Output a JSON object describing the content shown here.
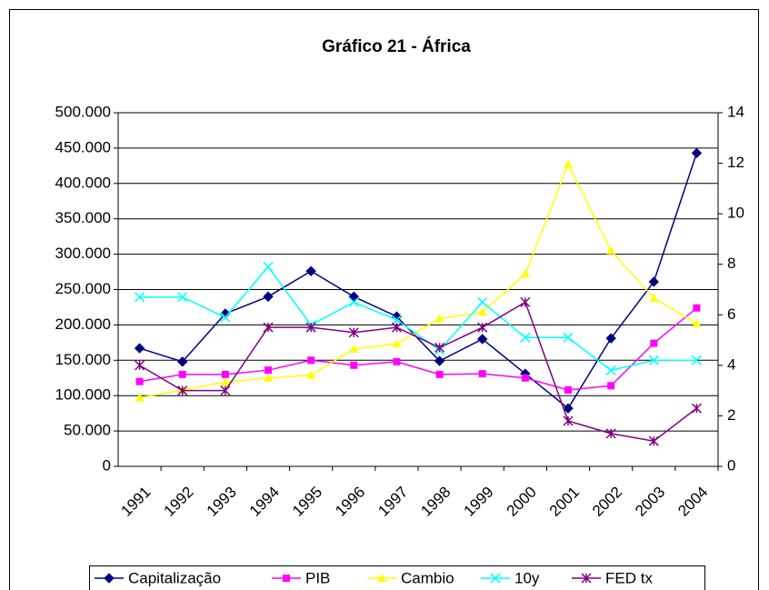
{
  "chart_data": {
    "type": "line",
    "title": "Gráfico 21 - África",
    "categories": [
      "1991",
      "1992",
      "1993",
      "1994",
      "1995",
      "1996",
      "1997",
      "1998",
      "1999",
      "2000",
      "2001",
      "2002",
      "2003",
      "2004"
    ],
    "series": [
      {
        "name": "Capitalização",
        "color": "#000080",
        "marker": "diamond",
        "values": [
          167000,
          148000,
          216000,
          240000,
          276000,
          240000,
          212000,
          149000,
          180000,
          131000,
          82000,
          181000,
          261000,
          443000
        ]
      },
      {
        "name": "PIB",
        "color": "#ff00ff",
        "marker": "square",
        "values": [
          120000,
          130000,
          130000,
          136000,
          150000,
          143000,
          148000,
          130000,
          131000,
          125000,
          108000,
          114000,
          174000,
          224000
        ]
      },
      {
        "name": "Cambio",
        "color": "#ffff00",
        "marker": "triangle",
        "values": [
          97000,
          108000,
          119000,
          125000,
          129000,
          166000,
          173000,
          209000,
          218000,
          272000,
          427000,
          305000,
          238000,
          202000
        ]
      },
      {
        "name": "10y",
        "color": "#00ffff",
        "marker": "x",
        "axis": "y2",
        "values": [
          6.7,
          6.7,
          5.9,
          7.9,
          5.6,
          6.5,
          5.8,
          4.6,
          6.5,
          5.1,
          5.1,
          3.8,
          4.2,
          4.2
        ]
      },
      {
        "name": "FED tx",
        "color": "#800080",
        "marker": "star",
        "axis": "y2",
        "values": [
          4.0,
          3.0,
          3.0,
          5.5,
          5.5,
          5.3,
          5.5,
          4.7,
          5.5,
          6.5,
          1.8,
          1.3,
          1.0,
          2.3
        ]
      }
    ],
    "ylim": [
      0,
      500000
    ],
    "yticks": [
      0,
      {
        "value": 50000,
        "label": "50.000"
      },
      {
        "value": 100000,
        "label": "100.000"
      },
      {
        "value": 150000,
        "label": "150.000"
      },
      {
        "value": 200000,
        "label": "200.000"
      },
      {
        "value": 250000,
        "label": "250.000"
      },
      {
        "value": 300000,
        "label": "300.000"
      },
      {
        "value": 350000,
        "label": "350.000"
      },
      {
        "value": 400000,
        "label": "400.000"
      },
      {
        "value": 450000,
        "label": "450.000"
      },
      {
        "value": 500000,
        "label": "500.000"
      }
    ],
    "y2lim": [
      0,
      14
    ],
    "y2ticks": [
      0,
      2,
      4,
      6,
      8,
      10,
      12,
      14
    ],
    "grid": true,
    "legend": "bottom"
  }
}
